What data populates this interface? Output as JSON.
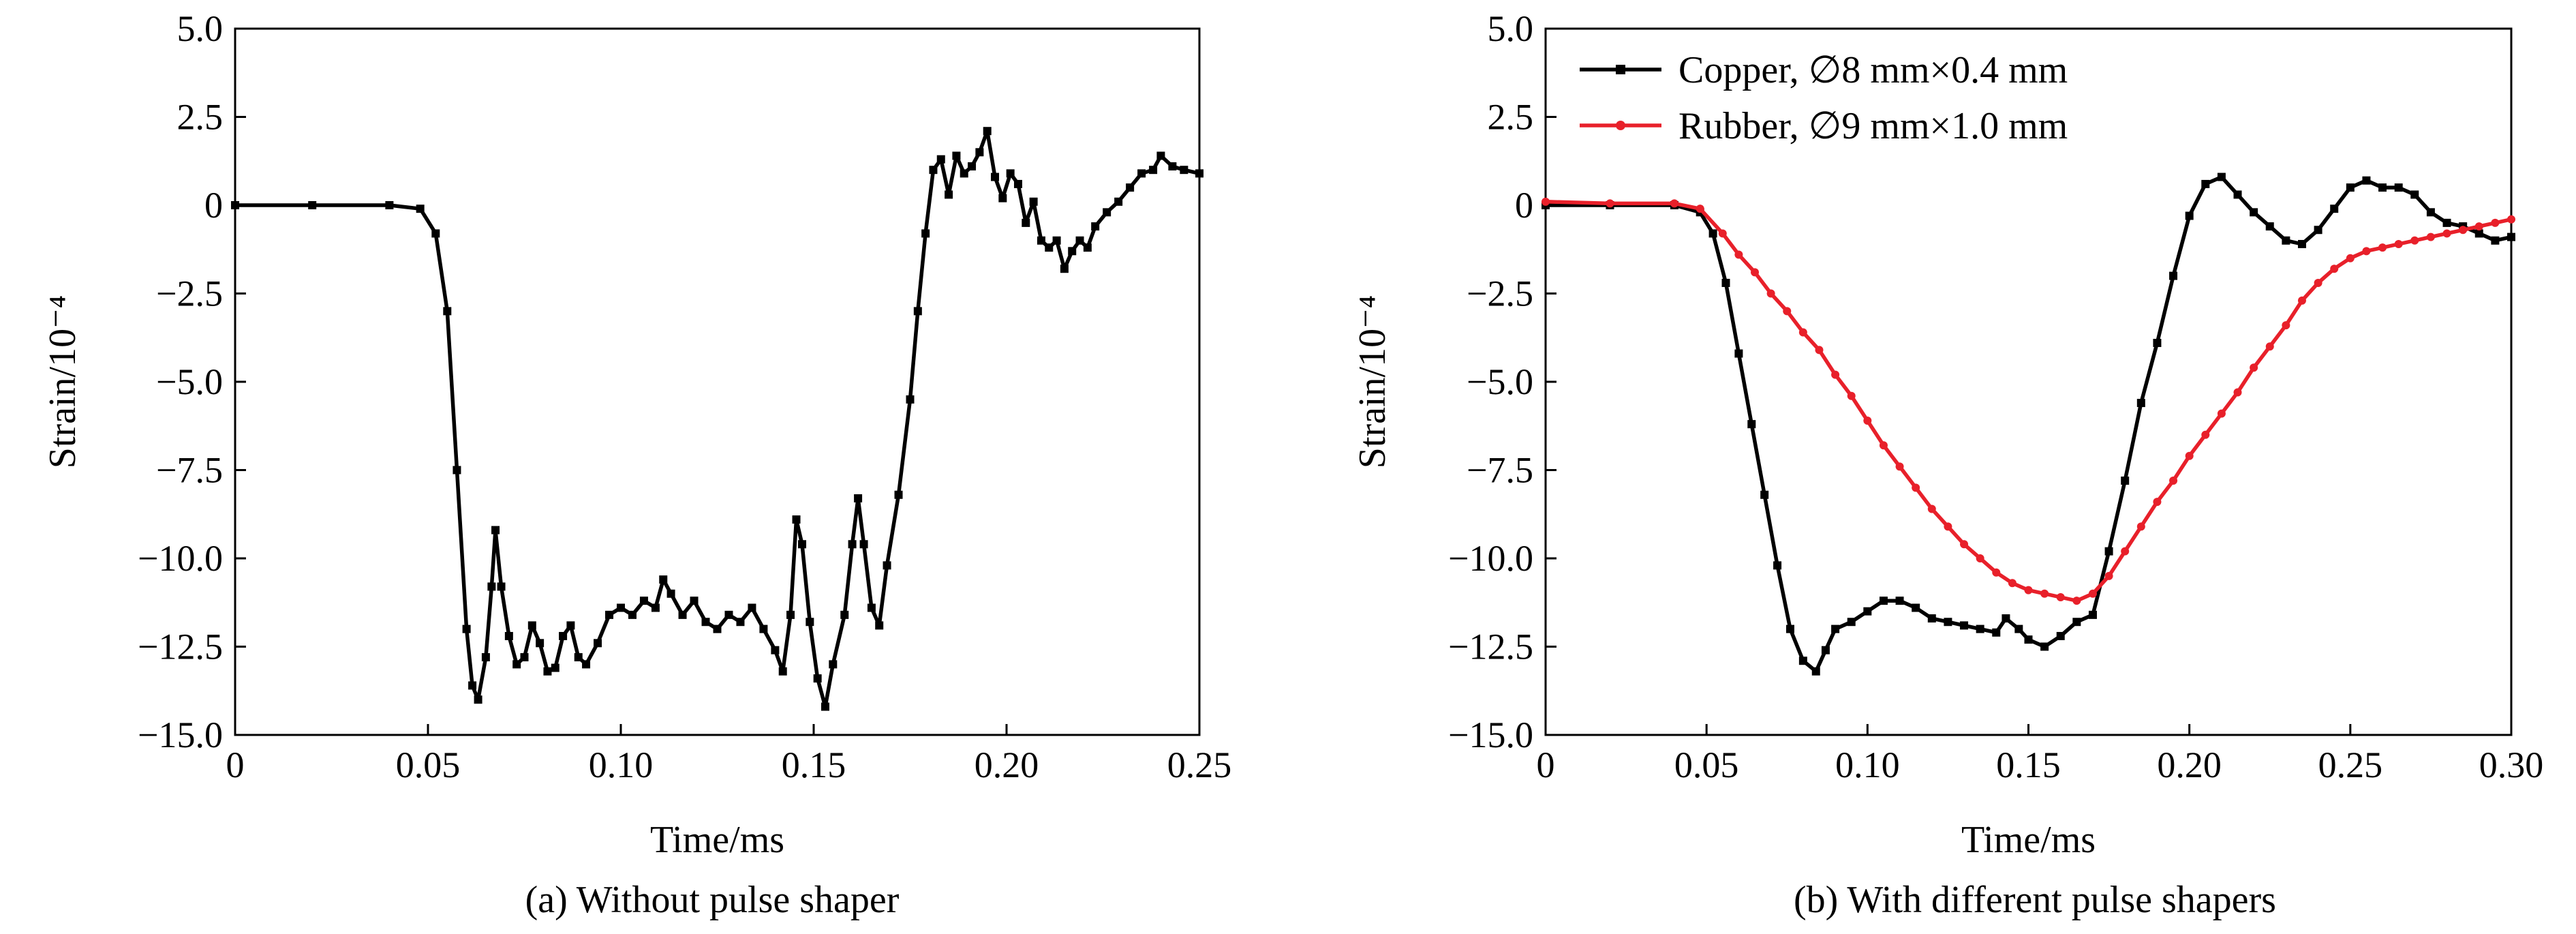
{
  "figure": {
    "panels": [
      {
        "caption": "(a) Without pulse shaper"
      },
      {
        "caption": "(b) With different pulse shapers"
      }
    ]
  },
  "chart_data": [
    {
      "type": "line",
      "title": "",
      "xlabel": "Time/ms",
      "ylabel": "Strain/10⁻⁴",
      "xlim": [
        0,
        0.25
      ],
      "ylim": [
        -15.0,
        5.0
      ],
      "xticks": [
        "0",
        "0.05",
        "0.10",
        "0.15",
        "0.20",
        "0.25"
      ],
      "yticks": [
        "5.0",
        "2.5",
        "0",
        "−2.5",
        "−5.0",
        "−7.5",
        "−10.0",
        "−12.5",
        "−15.0"
      ],
      "grid": false,
      "series": [
        {
          "color": "#000000",
          "marker": "square",
          "points": [
            [
              0,
              0
            ],
            [
              0.02,
              0
            ],
            [
              0.04,
              0
            ],
            [
              0.048,
              -0.1
            ],
            [
              0.052,
              -0.8
            ],
            [
              0.055,
              -3.0
            ],
            [
              0.0575,
              -7.5
            ],
            [
              0.06,
              -12.0
            ],
            [
              0.0615,
              -13.6
            ],
            [
              0.063,
              -14.0
            ],
            [
              0.065,
              -12.8
            ],
            [
              0.0665,
              -10.8
            ],
            [
              0.0675,
              -9.2
            ],
            [
              0.069,
              -10.8
            ],
            [
              0.071,
              -12.2
            ],
            [
              0.073,
              -13.0
            ],
            [
              0.075,
              -12.8
            ],
            [
              0.077,
              -11.9
            ],
            [
              0.079,
              -12.4
            ],
            [
              0.081,
              -13.2
            ],
            [
              0.083,
              -13.1
            ],
            [
              0.085,
              -12.2
            ],
            [
              0.087,
              -11.9
            ],
            [
              0.089,
              -12.8
            ],
            [
              0.091,
              -13.0
            ],
            [
              0.094,
              -12.4
            ],
            [
              0.097,
              -11.6
            ],
            [
              0.1,
              -11.4
            ],
            [
              0.103,
              -11.6
            ],
            [
              0.106,
              -11.2
            ],
            [
              0.109,
              -11.4
            ],
            [
              0.111,
              -10.6
            ],
            [
              0.113,
              -11.0
            ],
            [
              0.116,
              -11.6
            ],
            [
              0.119,
              -11.2
            ],
            [
              0.122,
              -11.8
            ],
            [
              0.125,
              -12.0
            ],
            [
              0.128,
              -11.6
            ],
            [
              0.131,
              -11.8
            ],
            [
              0.134,
              -11.4
            ],
            [
              0.137,
              -12.0
            ],
            [
              0.14,
              -12.6
            ],
            [
              0.142,
              -13.2
            ],
            [
              0.144,
              -11.6
            ],
            [
              0.1455,
              -8.9
            ],
            [
              0.147,
              -9.6
            ],
            [
              0.149,
              -11.8
            ],
            [
              0.151,
              -13.4
            ],
            [
              0.153,
              -14.2
            ],
            [
              0.155,
              -13.0
            ],
            [
              0.158,
              -11.6
            ],
            [
              0.16,
              -9.6
            ],
            [
              0.1615,
              -8.3
            ],
            [
              0.163,
              -9.6
            ],
            [
              0.165,
              -11.4
            ],
            [
              0.167,
              -11.9
            ],
            [
              0.169,
              -10.2
            ],
            [
              0.172,
              -8.2
            ],
            [
              0.175,
              -5.5
            ],
            [
              0.177,
              -3.0
            ],
            [
              0.179,
              -0.8
            ],
            [
              0.181,
              1.0
            ],
            [
              0.183,
              1.3
            ],
            [
              0.185,
              0.3
            ],
            [
              0.187,
              1.4
            ],
            [
              0.189,
              0.9
            ],
            [
              0.191,
              1.1
            ],
            [
              0.193,
              1.5
            ],
            [
              0.195,
              2.1
            ],
            [
              0.197,
              0.8
            ],
            [
              0.199,
              0.2
            ],
            [
              0.201,
              0.9
            ],
            [
              0.203,
              0.6
            ],
            [
              0.205,
              -0.5
            ],
            [
              0.207,
              0.1
            ],
            [
              0.209,
              -1.0
            ],
            [
              0.211,
              -1.2
            ],
            [
              0.213,
              -1.0
            ],
            [
              0.215,
              -1.8
            ],
            [
              0.217,
              -1.3
            ],
            [
              0.219,
              -1.0
            ],
            [
              0.221,
              -1.2
            ],
            [
              0.223,
              -0.6
            ],
            [
              0.226,
              -0.2
            ],
            [
              0.229,
              0.1
            ],
            [
              0.232,
              0.5
            ],
            [
              0.235,
              0.9
            ],
            [
              0.238,
              1.0
            ],
            [
              0.24,
              1.4
            ],
            [
              0.243,
              1.1
            ],
            [
              0.246,
              1.0
            ],
            [
              0.25,
              0.9
            ]
          ]
        }
      ]
    },
    {
      "type": "line",
      "title": "",
      "xlabel": "Time/ms",
      "ylabel": "Strain/10⁻⁴",
      "xlim": [
        0,
        0.3
      ],
      "ylim": [
        -15.0,
        5.0
      ],
      "xticks": [
        "0",
        "0.05",
        "0.10",
        "0.15",
        "0.20",
        "0.25",
        "0.30"
      ],
      "yticks": [
        "5.0",
        "2.5",
        "0",
        "−2.5",
        "−5.0",
        "−7.5",
        "−10.0",
        "−12.5",
        "−15.0"
      ],
      "grid": false,
      "legend_position": "top-left",
      "series": [
        {
          "name": "Copper, ∅8 mm×0.4 mm",
          "color": "#000000",
          "marker": "square",
          "points": [
            [
              0,
              0
            ],
            [
              0.02,
              0
            ],
            [
              0.04,
              0
            ],
            [
              0.048,
              -0.2
            ],
            [
              0.052,
              -0.8
            ],
            [
              0.056,
              -2.2
            ],
            [
              0.06,
              -4.2
            ],
            [
              0.064,
              -6.2
            ],
            [
              0.068,
              -8.2
            ],
            [
              0.072,
              -10.2
            ],
            [
              0.076,
              -12.0
            ],
            [
              0.08,
              -12.9
            ],
            [
              0.084,
              -13.2
            ],
            [
              0.087,
              -12.6
            ],
            [
              0.09,
              -12.0
            ],
            [
              0.095,
              -11.8
            ],
            [
              0.1,
              -11.5
            ],
            [
              0.105,
              -11.2
            ],
            [
              0.11,
              -11.2
            ],
            [
              0.115,
              -11.4
            ],
            [
              0.12,
              -11.7
            ],
            [
              0.125,
              -11.8
            ],
            [
              0.13,
              -11.9
            ],
            [
              0.135,
              -12.0
            ],
            [
              0.14,
              -12.1
            ],
            [
              0.143,
              -11.7
            ],
            [
              0.147,
              -12.0
            ],
            [
              0.15,
              -12.3
            ],
            [
              0.155,
              -12.5
            ],
            [
              0.16,
              -12.2
            ],
            [
              0.165,
              -11.8
            ],
            [
              0.17,
              -11.6
            ],
            [
              0.175,
              -9.8
            ],
            [
              0.18,
              -7.8
            ],
            [
              0.185,
              -5.6
            ],
            [
              0.19,
              -3.9
            ],
            [
              0.195,
              -2.0
            ],
            [
              0.2,
              -0.3
            ],
            [
              0.205,
              0.6
            ],
            [
              0.21,
              0.8
            ],
            [
              0.215,
              0.3
            ],
            [
              0.22,
              -0.2
            ],
            [
              0.225,
              -0.6
            ],
            [
              0.23,
              -1.0
            ],
            [
              0.235,
              -1.1
            ],
            [
              0.24,
              -0.7
            ],
            [
              0.245,
              -0.1
            ],
            [
              0.25,
              0.5
            ],
            [
              0.255,
              0.7
            ],
            [
              0.26,
              0.5
            ],
            [
              0.265,
              0.5
            ],
            [
              0.27,
              0.3
            ],
            [
              0.275,
              -0.2
            ],
            [
              0.28,
              -0.5
            ],
            [
              0.285,
              -0.6
            ],
            [
              0.29,
              -0.8
            ],
            [
              0.295,
              -1.0
            ],
            [
              0.3,
              -0.9
            ]
          ]
        },
        {
          "name": "Rubber, ∅9 mm×1.0 mm",
          "color": "#e8202a",
          "marker": "circle",
          "points": [
            [
              0,
              0.1
            ],
            [
              0.02,
              0.05
            ],
            [
              0.04,
              0.05
            ],
            [
              0.048,
              -0.1
            ],
            [
              0.055,
              -0.8
            ],
            [
              0.06,
              -1.4
            ],
            [
              0.065,
              -1.9
            ],
            [
              0.07,
              -2.5
            ],
            [
              0.075,
              -3.0
            ],
            [
              0.08,
              -3.6
            ],
            [
              0.085,
              -4.1
            ],
            [
              0.09,
              -4.8
            ],
            [
              0.095,
              -5.4
            ],
            [
              0.1,
              -6.1
            ],
            [
              0.105,
              -6.8
            ],
            [
              0.11,
              -7.4
            ],
            [
              0.115,
              -8.0
            ],
            [
              0.12,
              -8.6
            ],
            [
              0.125,
              -9.1
            ],
            [
              0.13,
              -9.6
            ],
            [
              0.135,
              -10.0
            ],
            [
              0.14,
              -10.4
            ],
            [
              0.145,
              -10.7
            ],
            [
              0.15,
              -10.9
            ],
            [
              0.155,
              -11.0
            ],
            [
              0.16,
              -11.1
            ],
            [
              0.165,
              -11.2
            ],
            [
              0.17,
              -11.0
            ],
            [
              0.175,
              -10.5
            ],
            [
              0.18,
              -9.8
            ],
            [
              0.185,
              -9.1
            ],
            [
              0.19,
              -8.4
            ],
            [
              0.195,
              -7.8
            ],
            [
              0.2,
              -7.1
            ],
            [
              0.205,
              -6.5
            ],
            [
              0.21,
              -5.9
            ],
            [
              0.215,
              -5.3
            ],
            [
              0.22,
              -4.6
            ],
            [
              0.225,
              -4.0
            ],
            [
              0.23,
              -3.4
            ],
            [
              0.235,
              -2.7
            ],
            [
              0.24,
              -2.2
            ],
            [
              0.245,
              -1.8
            ],
            [
              0.25,
              -1.5
            ],
            [
              0.255,
              -1.3
            ],
            [
              0.26,
              -1.2
            ],
            [
              0.265,
              -1.1
            ],
            [
              0.27,
              -1.0
            ],
            [
              0.275,
              -0.9
            ],
            [
              0.28,
              -0.8
            ],
            [
              0.285,
              -0.7
            ],
            [
              0.29,
              -0.6
            ],
            [
              0.295,
              -0.5
            ],
            [
              0.3,
              -0.4
            ]
          ]
        }
      ]
    }
  ]
}
